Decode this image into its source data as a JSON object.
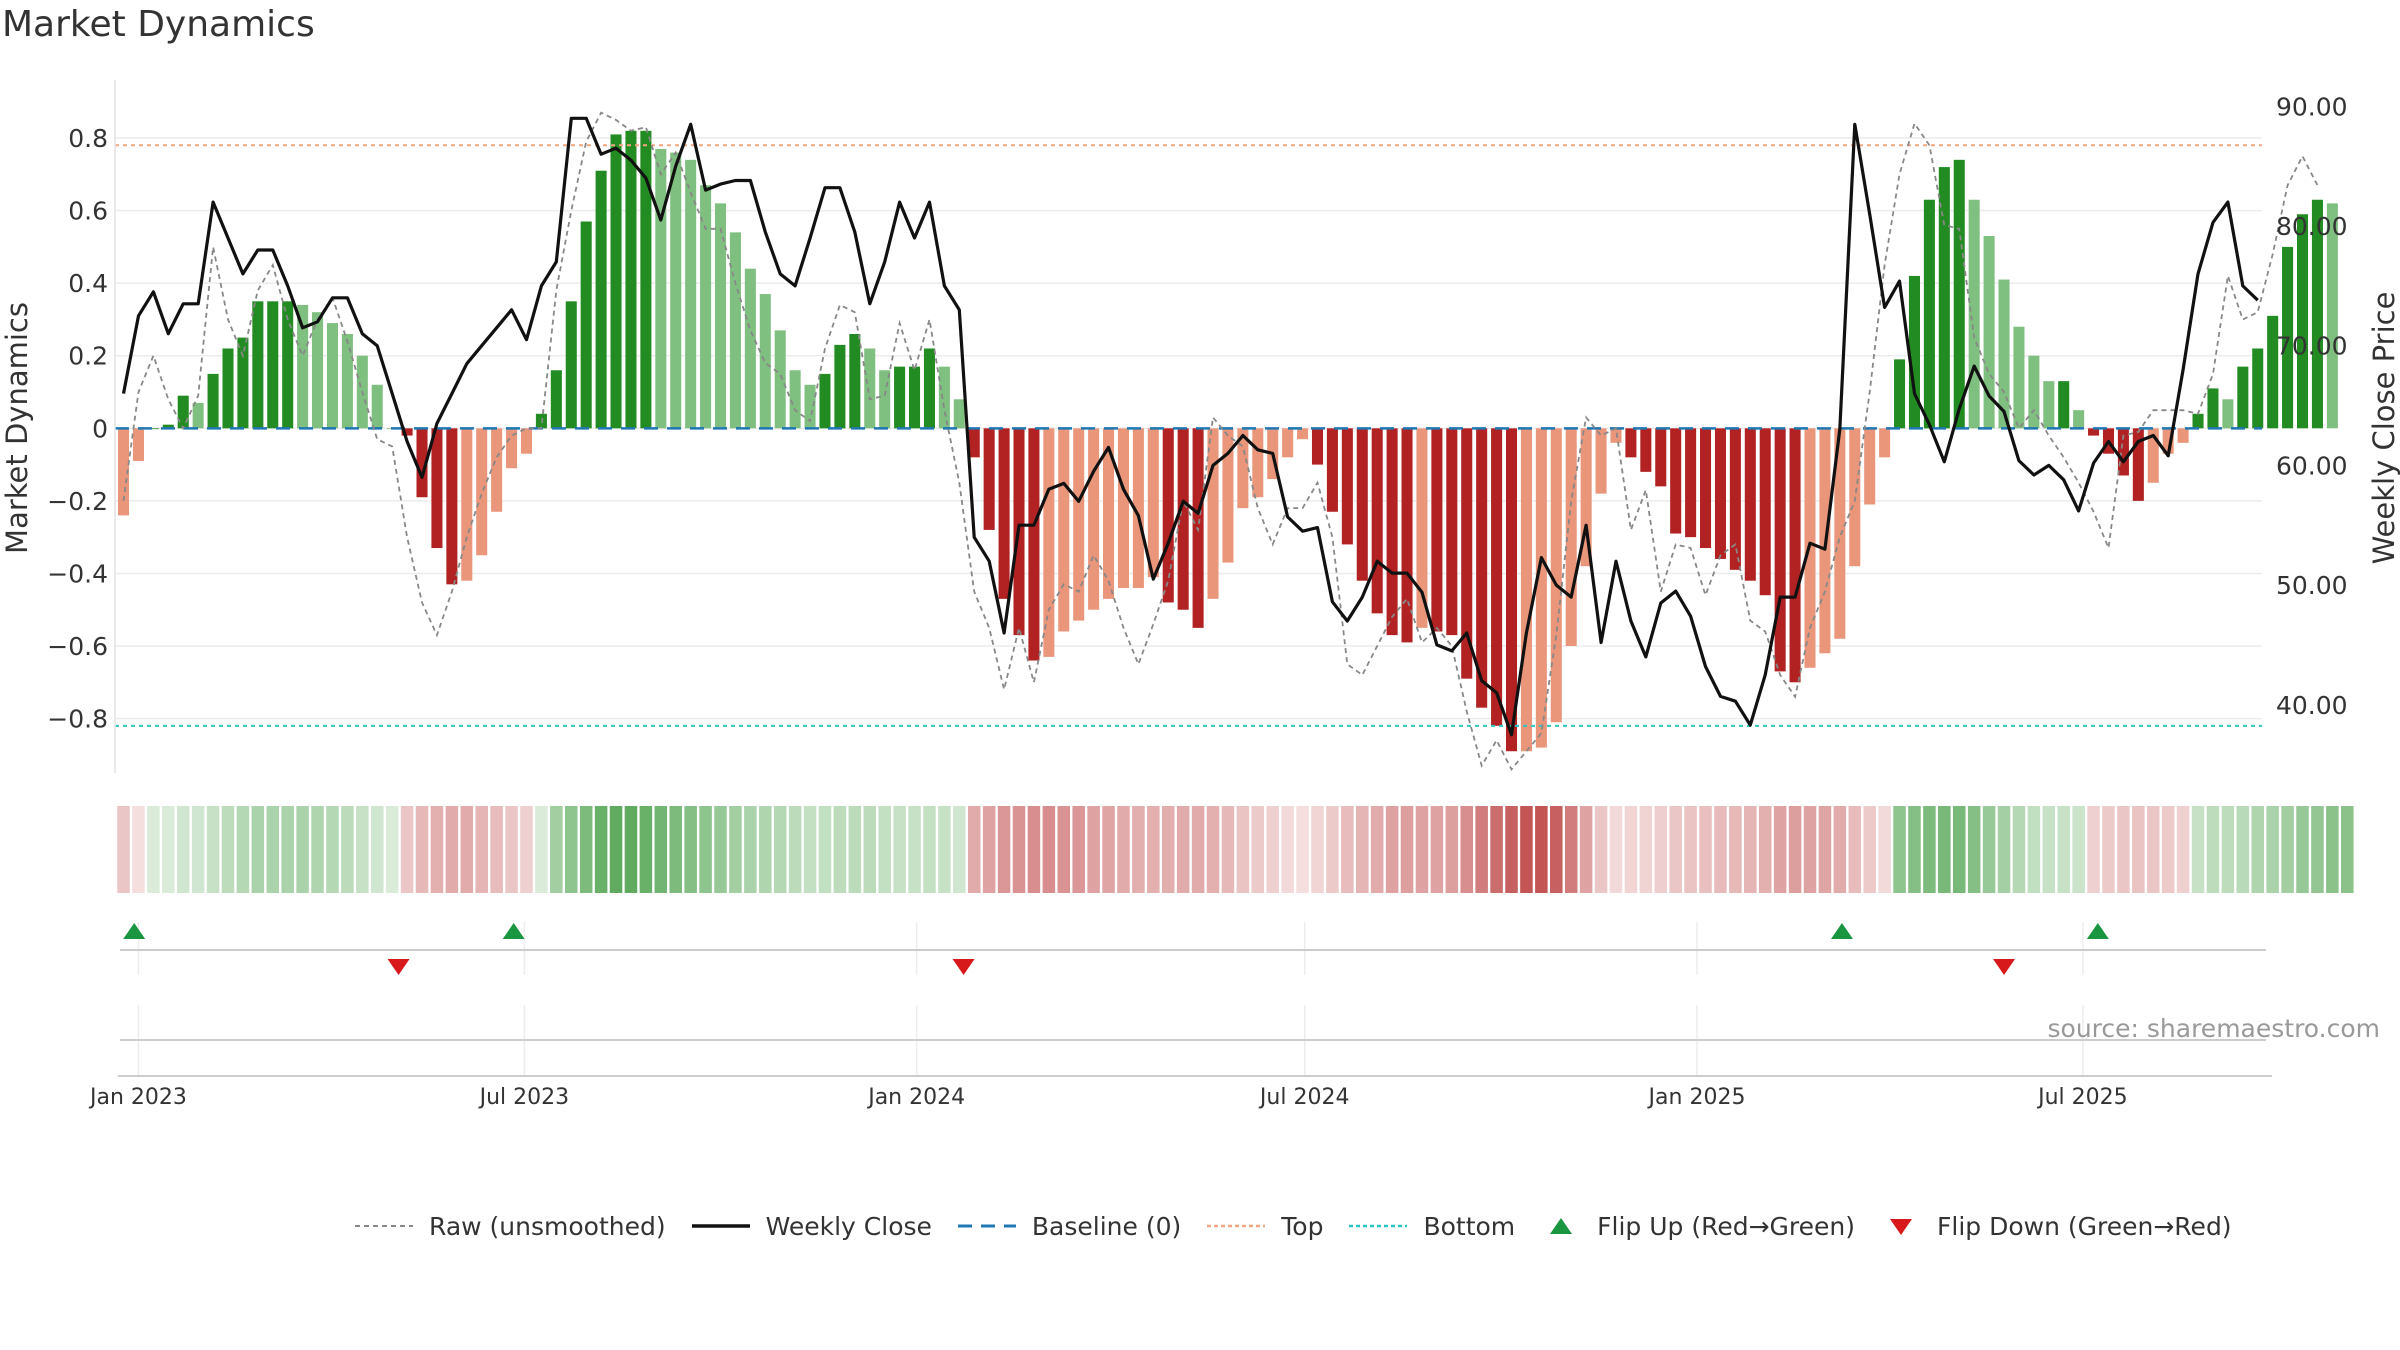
{
  "title": "Market Dynamics",
  "source_label": "source: sharemaestro.com",
  "chart_data": {
    "type": "bar",
    "y_left_label": "Market Dynamics",
    "y_right_label": "Weekly Close Price",
    "y_left_ticks": [
      "−0.8",
      "−0.6",
      "−0.4",
      "−0.2",
      "0",
      "0.2",
      "0.4",
      "0.6",
      "0.8"
    ],
    "y_left_tick_values": [
      -0.8,
      -0.6,
      -0.4,
      -0.2,
      0,
      0.2,
      0.4,
      0.6,
      0.8
    ],
    "y_right_ticks": [
      "40.00",
      "50.00",
      "60.00",
      "70.00",
      "80.00",
      "90.00"
    ],
    "y_right_tick_values": [
      40,
      50,
      60,
      70,
      80,
      90
    ],
    "y_left_range": [
      -0.95,
      0.96
    ],
    "y_right_range": [
      34.3,
      92.2
    ],
    "x_ticks": [
      "Jan 2023",
      "Jul 2023",
      "Jan 2024",
      "Jul 2024",
      "Jan 2025",
      "Jul 2025"
    ],
    "x_tick_dates": [
      "2023-01-01",
      "2023-07-01",
      "2024-01-01",
      "2024-07-01",
      "2025-01-01",
      "2025-07-01"
    ],
    "x_range": [
      "2022-12-21",
      "2025-09-23"
    ],
    "first_week": "2022-12-25",
    "week_spacing_days": 7,
    "top_line": 0.78,
    "bottom_line": -0.82,
    "baseline": 0,
    "grid": true,
    "legend_position": "bottom",
    "colors": {
      "strong_green": "#228b22",
      "light_green": "#7fbf7f",
      "strong_red": "#b22222",
      "light_red": "#e9967a",
      "top_line": "#f4a582",
      "bottom_line": "#2ec4c4",
      "baseline": "#1f77b4",
      "raw_line": "#888888",
      "close_line": "#111111",
      "flip_up": "#1a9641",
      "flip_down": "#d7191c"
    },
    "series": [
      {
        "name": "Market Dynamics (bars)",
        "values": [
          -0.24,
          -0.09,
          0.0,
          0.01,
          0.09,
          0.07,
          0.15,
          0.22,
          0.25,
          0.35,
          0.35,
          0.35,
          0.34,
          0.32,
          0.29,
          0.26,
          0.2,
          0.12,
          0.0,
          -0.02,
          -0.19,
          -0.33,
          -0.43,
          -0.42,
          -0.35,
          -0.23,
          -0.11,
          -0.07,
          0.04,
          0.16,
          0.35,
          0.57,
          0.71,
          0.81,
          0.82,
          0.82,
          0.77,
          0.76,
          0.74,
          0.67,
          0.62,
          0.54,
          0.44,
          0.37,
          0.27,
          0.16,
          0.12,
          0.15,
          0.23,
          0.26,
          0.22,
          0.16,
          0.17,
          0.17,
          0.22,
          0.17,
          0.08,
          -0.08,
          -0.28,
          -0.47,
          -0.57,
          -0.64,
          -0.63,
          -0.56,
          -0.53,
          -0.5,
          -0.47,
          -0.44,
          -0.44,
          -0.41,
          -0.48,
          -0.5,
          -0.55,
          -0.47,
          -0.37,
          -0.22,
          -0.19,
          -0.14,
          -0.08,
          -0.03,
          -0.1,
          -0.23,
          -0.32,
          -0.42,
          -0.51,
          -0.57,
          -0.59,
          -0.55,
          -0.56,
          -0.57,
          -0.69,
          -0.77,
          -0.82,
          -0.89,
          -0.89,
          -0.88,
          -0.81,
          -0.6,
          -0.38,
          -0.18,
          -0.04,
          -0.08,
          -0.12,
          -0.16,
          -0.29,
          -0.3,
          -0.33,
          -0.36,
          -0.39,
          -0.42,
          -0.46,
          -0.67,
          -0.7,
          -0.66,
          -0.62,
          -0.58,
          -0.38,
          -0.21,
          -0.08,
          0.19,
          0.42,
          0.63,
          0.72,
          0.74,
          0.63,
          0.53,
          0.41,
          0.28,
          0.2,
          0.13,
          0.13,
          0.05,
          -0.02,
          -0.07,
          -0.13,
          -0.2,
          -0.15,
          -0.07,
          -0.04,
          0.04,
          0.11,
          0.08,
          0.17,
          0.22,
          0.31,
          0.5,
          0.59,
          0.63,
          0.62
        ]
      },
      {
        "name": "Raw (unsmoothed)",
        "values": [
          -0.2,
          0.1,
          0.2,
          0.08,
          0.0,
          0.09,
          0.5,
          0.3,
          0.2,
          0.38,
          0.45,
          0.3,
          0.2,
          0.3,
          0.36,
          0.24,
          0.1,
          -0.03,
          -0.05,
          -0.3,
          -0.48,
          -0.57,
          -0.45,
          -0.3,
          -0.18,
          -0.08,
          -0.02,
          0.0,
          0.0,
          0.38,
          0.6,
          0.79,
          0.87,
          0.85,
          0.82,
          0.83,
          0.7,
          0.76,
          0.65,
          0.55,
          0.55,
          0.4,
          0.27,
          0.18,
          0.15,
          0.05,
          0.02,
          0.22,
          0.34,
          0.32,
          0.08,
          0.09,
          0.29,
          0.16,
          0.3,
          0.05,
          -0.15,
          -0.45,
          -0.55,
          -0.72,
          -0.55,
          -0.7,
          -0.5,
          -0.43,
          -0.45,
          -0.35,
          -0.42,
          -0.55,
          -0.65,
          -0.54,
          -0.42,
          -0.2,
          -0.28,
          0.03,
          -0.02,
          -0.05,
          -0.22,
          -0.32,
          -0.22,
          -0.22,
          -0.15,
          -0.3,
          -0.65,
          -0.68,
          -0.6,
          -0.52,
          -0.47,
          -0.59,
          -0.55,
          -0.6,
          -0.78,
          -0.93,
          -0.86,
          -0.94,
          -0.89,
          -0.84,
          -0.57,
          -0.2,
          0.03,
          -0.02,
          0.0,
          -0.28,
          -0.17,
          -0.45,
          -0.32,
          -0.33,
          -0.46,
          -0.35,
          -0.32,
          -0.53,
          -0.56,
          -0.68,
          -0.74,
          -0.55,
          -0.45,
          -0.3,
          -0.2,
          0.1,
          0.45,
          0.7,
          0.84,
          0.78,
          0.56,
          0.55,
          0.25,
          0.15,
          0.1,
          0.0,
          0.05,
          -0.02,
          -0.08,
          -0.15,
          -0.23,
          -0.33,
          -0.02,
          -0.01,
          0.05,
          0.05,
          0.05,
          0.04,
          0.15,
          0.42,
          0.3,
          0.32,
          0.48,
          0.67,
          0.75,
          0.67
        ]
      },
      {
        "name": "Weekly Close",
        "axis": "right",
        "values": [
          66,
          72.5,
          74.5,
          71,
          73.5,
          73.5,
          82,
          79,
          76,
          78,
          78,
          75,
          71.5,
          72,
          74,
          74,
          71,
          70,
          66,
          62,
          59,
          63.5,
          66,
          68.5,
          70,
          71.5,
          73,
          70.5,
          75,
          77,
          89,
          89,
          86,
          86.5,
          85.5,
          84,
          80.5,
          85,
          88.5,
          83,
          83.5,
          83.8,
          83.8,
          79.5,
          76,
          75,
          79,
          83.2,
          83.2,
          79.5,
          73.5,
          77,
          82,
          79,
          82,
          75,
          73,
          54,
          52,
          46,
          55,
          55,
          58,
          58.5,
          57,
          59.5,
          61.5,
          58,
          55.8,
          50.5,
          53.5,
          57,
          56,
          60,
          61,
          62.5,
          61.3,
          61,
          55.7,
          54.5,
          54.8,
          48.6,
          47,
          49,
          52,
          51,
          51,
          49.4,
          45,
          44.5,
          46,
          42,
          41,
          37.5,
          46,
          52.3,
          50,
          49,
          55,
          45.2,
          52,
          47,
          44,
          48.5,
          49.5,
          47.4,
          43.2,
          40.7,
          40.3,
          38.3,
          42.5,
          49,
          49,
          53.5,
          53,
          63,
          88.5,
          81,
          73.2,
          75.4,
          66,
          63.4,
          60.3,
          64.7,
          68.3,
          65.8,
          64.5,
          60.4,
          59.2,
          60,
          58.8,
          56.2,
          60.2,
          62,
          60.3,
          62,
          62.5,
          60.8,
          68,
          76,
          80.3,
          82,
          75,
          73.8
        ]
      }
    ],
    "regime_strip_intensity": [
      -0.3,
      -0.1,
      0.2,
      0.2,
      0.25,
      0.25,
      0.3,
      0.35,
      0.4,
      0.45,
      0.45,
      0.45,
      0.45,
      0.42,
      0.4,
      0.36,
      0.3,
      0.25,
      0.2,
      -0.3,
      -0.38,
      -0.42,
      -0.45,
      -0.45,
      -0.4,
      -0.35,
      -0.3,
      -0.25,
      0.2,
      0.5,
      0.6,
      0.7,
      0.8,
      0.85,
      0.85,
      0.8,
      0.75,
      0.7,
      0.65,
      0.6,
      0.55,
      0.5,
      0.45,
      0.42,
      0.4,
      0.36,
      0.32,
      0.33,
      0.35,
      0.37,
      0.36,
      0.32,
      0.3,
      0.3,
      0.32,
      0.3,
      0.25,
      -0.45,
      -0.5,
      -0.55,
      -0.58,
      -0.6,
      -0.6,
      -0.58,
      -0.55,
      -0.5,
      -0.48,
      -0.45,
      -0.43,
      -0.42,
      -0.44,
      -0.45,
      -0.45,
      -0.42,
      -0.38,
      -0.32,
      -0.28,
      -0.25,
      -0.2,
      -0.18,
      -0.22,
      -0.28,
      -0.35,
      -0.4,
      -0.45,
      -0.5,
      -0.52,
      -0.5,
      -0.5,
      -0.52,
      -0.6,
      -0.7,
      -0.78,
      -0.85,
      -0.9,
      -0.9,
      -0.85,
      -0.7,
      -0.5,
      -0.3,
      -0.2,
      -0.22,
      -0.24,
      -0.26,
      -0.3,
      -0.32,
      -0.34,
      -0.36,
      -0.38,
      -0.4,
      -0.42,
      -0.5,
      -0.52,
      -0.5,
      -0.48,
      -0.45,
      -0.35,
      -0.28,
      -0.2,
      0.6,
      0.65,
      0.7,
      0.72,
      0.72,
      0.65,
      0.55,
      0.48,
      0.4,
      0.33,
      0.3,
      0.3,
      0.28,
      -0.25,
      -0.28,
      -0.3,
      -0.32,
      -0.3,
      -0.28,
      -0.25,
      0.3,
      0.35,
      0.35,
      0.38,
      0.42,
      0.45,
      0.5,
      0.55,
      0.58,
      0.62,
      0.62
    ],
    "flip_up_dates": [
      "2022-12-30",
      "2023-06-26",
      "2025-03-10",
      "2025-07-08"
    ],
    "flip_down_dates": [
      "2023-05-03",
      "2024-01-23",
      "2025-05-25"
    ],
    "legend": [
      {
        "key": "raw",
        "label": "Raw (unsmoothed)"
      },
      {
        "key": "close",
        "label": "Weekly Close"
      },
      {
        "key": "baseline",
        "label": "Baseline (0)"
      },
      {
        "key": "top",
        "label": "Top"
      },
      {
        "key": "bottom",
        "label": "Bottom"
      },
      {
        "key": "flip_up",
        "label": "Flip Up (Red→Green)"
      },
      {
        "key": "flip_down",
        "label": "Flip Down (Green→Red)"
      }
    ]
  }
}
